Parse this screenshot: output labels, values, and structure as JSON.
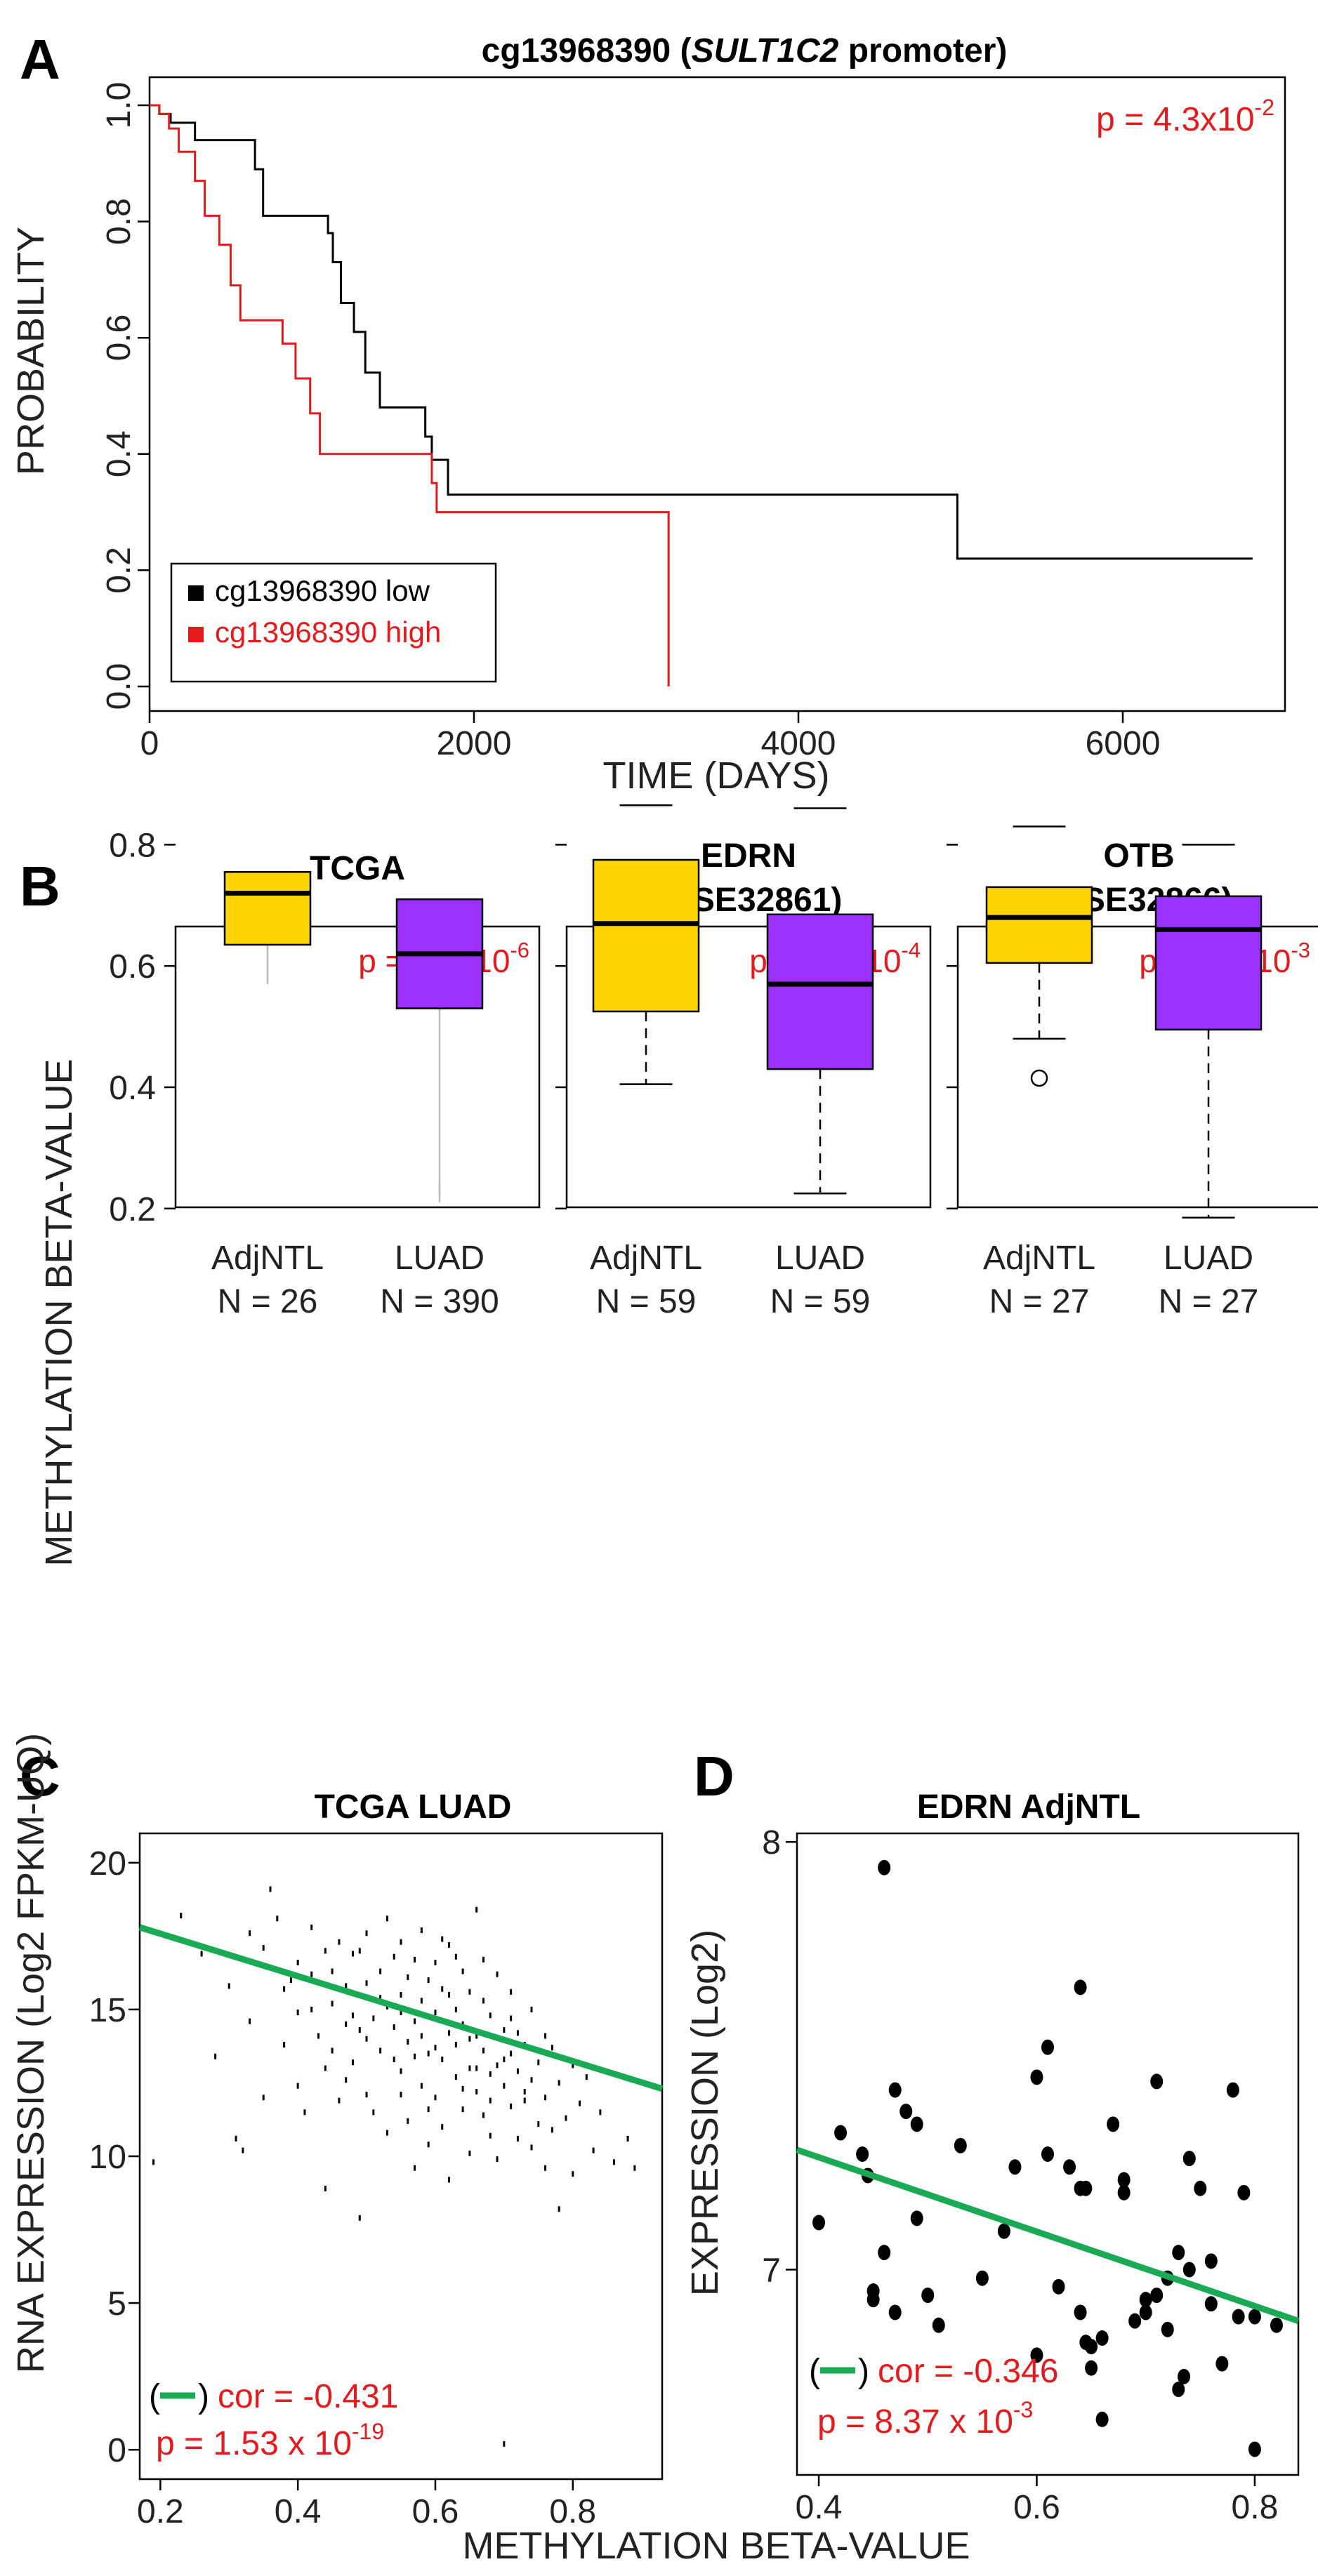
{
  "colors": {
    "red": "#e41a1c",
    "black": "#000000",
    "gold": "#ffd400",
    "purple": "#9b30ff",
    "green": "#1aaa55",
    "grey": "#bbbbbb"
  },
  "panels": {
    "A": {
      "letter": "A"
    },
    "B": {
      "letter": "B"
    },
    "C": {
      "letter": "C"
    },
    "D": {
      "letter": "D"
    }
  },
  "chart_data": [
    {
      "id": "A",
      "type": "line",
      "title_prefix": "cg13968390 (",
      "title_gene": "SULT1C2",
      "title_suffix": " promoter)",
      "xlabel": "TIME (DAYS)",
      "ylabel": "PROBABILITY",
      "xlim": [
        0,
        7000
      ],
      "ylim": [
        0,
        1.0
      ],
      "xticks": [
        0,
        2000,
        4000,
        6000
      ],
      "yticks": [
        "0.0",
        "0.2",
        "0.4",
        "0.6",
        "0.8",
        "1.0"
      ],
      "pvalue": {
        "base": "p = 4.3x10",
        "exp": "-2"
      },
      "legend_position": "bottom-left",
      "series": [
        {
          "name": "cg13968390 low",
          "color": "#000000",
          "steps": [
            [
              0,
              1.0
            ],
            [
              60,
              0.985
            ],
            [
              130,
              0.97
            ],
            [
              280,
              0.94
            ],
            [
              650,
              0.89
            ],
            [
              700,
              0.81
            ],
            [
              1100,
              0.78
            ],
            [
              1130,
              0.73
            ],
            [
              1180,
              0.66
            ],
            [
              1260,
              0.61
            ],
            [
              1330,
              0.54
            ],
            [
              1420,
              0.48
            ],
            [
              1700,
              0.43
            ],
            [
              1740,
              0.39
            ],
            [
              1840,
              0.33
            ],
            [
              4980,
              0.33
            ],
            [
              4980,
              0.22
            ],
            [
              6800,
              0.22
            ]
          ]
        },
        {
          "name": "cg13968390 high",
          "color": "#e41a1c",
          "steps": [
            [
              0,
              1.0
            ],
            [
              60,
              0.985
            ],
            [
              120,
              0.96
            ],
            [
              180,
              0.92
            ],
            [
              280,
              0.87
            ],
            [
              340,
              0.81
            ],
            [
              430,
              0.76
            ],
            [
              500,
              0.69
            ],
            [
              560,
              0.63
            ],
            [
              820,
              0.59
            ],
            [
              900,
              0.53
            ],
            [
              990,
              0.47
            ],
            [
              1050,
              0.4
            ],
            [
              1740,
              0.35
            ],
            [
              1770,
              0.3
            ],
            [
              3200,
              0.3
            ],
            [
              3200,
              0.0
            ]
          ]
        }
      ]
    },
    {
      "id": "B",
      "type": "box",
      "ylabel": "METHYLATION BETA-VALUE",
      "ylim": [
        0.15,
        0.9
      ],
      "yticks": [
        "0.2",
        "0.4",
        "0.6",
        "0.8"
      ],
      "groups": [
        {
          "title_line1": "TCGA",
          "title_line2": "",
          "pvalue": {
            "base": "p = 2.6x10",
            "exp": "-6"
          },
          "boxes": [
            {
              "label": "AdjNTL",
              "n": "N = 26",
              "min": 0.57,
              "q1": 0.635,
              "median": 0.72,
              "q3": 0.755,
              "max": 0.785,
              "outliers": []
            },
            {
              "label": "LUAD",
              "n": "N = 390",
              "min": 0.21,
              "q1": 0.53,
              "median": 0.62,
              "q3": 0.71,
              "max": 0.92,
              "outliers": [
                0.235,
                0.225
              ]
            }
          ]
        },
        {
          "title_line1": "EDRN",
          "title_line2": "(GSE32861)",
          "pvalue": {
            "base": "p = 5.2x10",
            "exp": "-4"
          },
          "boxes": [
            {
              "label": "AdjNTL",
              "n": "N = 59",
              "min": 0.405,
              "q1": 0.525,
              "median": 0.67,
              "q3": 0.775,
              "max": 0.865,
              "outliers": []
            },
            {
              "label": "LUAD",
              "n": "N = 59",
              "min": 0.225,
              "q1": 0.43,
              "median": 0.57,
              "q3": 0.685,
              "max": 0.86,
              "outliers": []
            }
          ]
        },
        {
          "title_line1": "OTB",
          "title_line2": "(GSE32866)",
          "pvalue": {
            "base": "p = 1.9x10",
            "exp": "-3"
          },
          "boxes": [
            {
              "label": "AdjNTL",
              "n": "N = 27",
              "min": 0.48,
              "q1": 0.605,
              "median": 0.68,
              "q3": 0.73,
              "max": 0.83,
              "outliers": [
                0.415
              ]
            },
            {
              "label": "LUAD",
              "n": "N = 27",
              "min": 0.185,
              "q1": 0.495,
              "median": 0.66,
              "q3": 0.715,
              "max": 0.8,
              "outliers": []
            }
          ]
        }
      ]
    },
    {
      "id": "C",
      "type": "scatter",
      "title": "TCGA LUAD",
      "xlabel": "METHYLATION BETA-VALUE",
      "ylabel": "RNA EXPRESSION (Log2 FPKM-UQ)",
      "xlim": [
        0.17,
        0.93
      ],
      "ylim": [
        -1,
        21
      ],
      "xticks": [
        "0.2",
        "0.4",
        "0.6",
        "0.8"
      ],
      "yticks": [
        "0",
        "5",
        "10",
        "15",
        "20"
      ],
      "fit": {
        "x": [
          0.17,
          0.93
        ],
        "y": [
          17.8,
          12.3
        ]
      },
      "cor": "cor = -0.431",
      "pvalue": {
        "base": "p = 1.53 x 10",
        "exp": "-19"
      },
      "points": [
        [
          0.19,
          9.8
        ],
        [
          0.23,
          18.2
        ],
        [
          0.26,
          16.9
        ],
        [
          0.28,
          13.4
        ],
        [
          0.3,
          15.8
        ],
        [
          0.31,
          10.6
        ],
        [
          0.32,
          10.2
        ],
        [
          0.33,
          14.6
        ],
        [
          0.33,
          17.6
        ],
        [
          0.35,
          17.1
        ],
        [
          0.36,
          19.1
        ],
        [
          0.37,
          18.1
        ],
        [
          0.38,
          15.7
        ],
        [
          0.38,
          13.8
        ],
        [
          0.4,
          16.6
        ],
        [
          0.4,
          14.9
        ],
        [
          0.4,
          12.4
        ],
        [
          0.41,
          11.5
        ],
        [
          0.42,
          17.8
        ],
        [
          0.42,
          16.2
        ],
        [
          0.43,
          14.1
        ],
        [
          0.44,
          13.0
        ],
        [
          0.44,
          8.9
        ],
        [
          0.45,
          16.3
        ],
        [
          0.45,
          15.2
        ],
        [
          0.46,
          17.3
        ],
        [
          0.46,
          11.9
        ],
        [
          0.47,
          14.5
        ],
        [
          0.47,
          15.8
        ],
        [
          0.48,
          13.2
        ],
        [
          0.48,
          16.9
        ],
        [
          0.49,
          7.9
        ],
        [
          0.49,
          14.3
        ],
        [
          0.5,
          15.9
        ],
        [
          0.5,
          12.1
        ],
        [
          0.5,
          17.6
        ],
        [
          0.51,
          14.7
        ],
        [
          0.51,
          11.5
        ],
        [
          0.52,
          16.3
        ],
        [
          0.52,
          13.6
        ],
        [
          0.53,
          15.1
        ],
        [
          0.53,
          18.1
        ],
        [
          0.53,
          10.8
        ],
        [
          0.54,
          14.4
        ],
        [
          0.54,
          16.8
        ],
        [
          0.55,
          12.9
        ],
        [
          0.55,
          15.5
        ],
        [
          0.55,
          17.3
        ],
        [
          0.56,
          13.9
        ],
        [
          0.56,
          11.2
        ],
        [
          0.56,
          16.1
        ],
        [
          0.57,
          14.6
        ],
        [
          0.57,
          9.6
        ],
        [
          0.58,
          15.3
        ],
        [
          0.58,
          12.4
        ],
        [
          0.58,
          17.7
        ],
        [
          0.59,
          13.5
        ],
        [
          0.59,
          16.0
        ],
        [
          0.59,
          10.4
        ],
        [
          0.6,
          14.9
        ],
        [
          0.6,
          12.0
        ],
        [
          0.6,
          16.6
        ],
        [
          0.61,
          13.3
        ],
        [
          0.61,
          15.7
        ],
        [
          0.61,
          11.0
        ],
        [
          0.62,
          14.2
        ],
        [
          0.62,
          17.2
        ],
        [
          0.62,
          9.2
        ],
        [
          0.63,
          12.7
        ],
        [
          0.63,
          15.0
        ],
        [
          0.63,
          13.8
        ],
        [
          0.64,
          16.3
        ],
        [
          0.64,
          11.6
        ],
        [
          0.64,
          14.5
        ],
        [
          0.65,
          10.1
        ],
        [
          0.65,
          13.0
        ],
        [
          0.65,
          15.6
        ],
        [
          0.66,
          12.2
        ],
        [
          0.66,
          14.1
        ],
        [
          0.66,
          18.4
        ],
        [
          0.67,
          11.4
        ],
        [
          0.67,
          13.6
        ],
        [
          0.67,
          15.3
        ],
        [
          0.68,
          10.7
        ],
        [
          0.68,
          12.8
        ],
        [
          0.68,
          14.8
        ],
        [
          0.69,
          13.1
        ],
        [
          0.69,
          9.9
        ],
        [
          0.69,
          16.2
        ],
        [
          0.7,
          12.4
        ],
        [
          0.7,
          14.3
        ],
        [
          0.7,
          0.2
        ],
        [
          0.71,
          11.7
        ],
        [
          0.71,
          13.5
        ],
        [
          0.71,
          15.6
        ],
        [
          0.72,
          10.6
        ],
        [
          0.72,
          12.9
        ],
        [
          0.72,
          14.2
        ],
        [
          0.73,
          11.9
        ],
        [
          0.73,
          13.8
        ],
        [
          0.74,
          10.3
        ],
        [
          0.74,
          12.6
        ],
        [
          0.74,
          15.0
        ],
        [
          0.75,
          11.1
        ],
        [
          0.75,
          13.2
        ],
        [
          0.76,
          9.6
        ],
        [
          0.76,
          12.0
        ],
        [
          0.77,
          13.7
        ],
        [
          0.77,
          10.9
        ],
        [
          0.78,
          8.2
        ],
        [
          0.78,
          12.5
        ],
        [
          0.79,
          11.3
        ],
        [
          0.8,
          13.1
        ],
        [
          0.8,
          9.4
        ],
        [
          0.81,
          11.8
        ],
        [
          0.82,
          12.7
        ],
        [
          0.83,
          10.2
        ],
        [
          0.84,
          11.5
        ],
        [
          0.86,
          9.8
        ],
        [
          0.88,
          10.6
        ],
        [
          0.89,
          9.6
        ],
        [
          0.35,
          12.0
        ],
        [
          0.45,
          13.6
        ],
        [
          0.5,
          14.0
        ],
        [
          0.55,
          14.9
        ],
        [
          0.6,
          13.7
        ],
        [
          0.65,
          14.0
        ],
        [
          0.7,
          13.3
        ],
        [
          0.52,
          15.4
        ],
        [
          0.57,
          16.7
        ],
        [
          0.62,
          15.5
        ],
        [
          0.47,
          12.6
        ],
        [
          0.58,
          14.1
        ],
        [
          0.66,
          13.0
        ],
        [
          0.73,
          12.2
        ],
        [
          0.42,
          15.0
        ],
        [
          0.39,
          16.0
        ],
        [
          0.55,
          12.1
        ],
        [
          0.68,
          11.9
        ],
        [
          0.76,
          14.1
        ],
        [
          0.49,
          17.0
        ],
        [
          0.61,
          17.4
        ],
        [
          0.54,
          13.3
        ],
        [
          0.64,
          12.3
        ],
        [
          0.71,
          14.7
        ],
        [
          0.59,
          11.6
        ],
        [
          0.63,
          16.8
        ],
        [
          0.67,
          16.7
        ],
        [
          0.48,
          14.8
        ],
        [
          0.44,
          17.0
        ],
        [
          0.57,
          13.4
        ]
      ]
    },
    {
      "id": "D",
      "type": "scatter",
      "title": "EDRN AdjNTL",
      "xlabel": "",
      "ylabel": "EXPRESSION (Log2)",
      "xlim": [
        0.38,
        0.84
      ],
      "ylim": [
        6.52,
        8.02
      ],
      "xticks": [
        "0.4",
        "0.6",
        "0.8"
      ],
      "yticks": [
        "7",
        "8"
      ],
      "fit": {
        "x": [
          0.38,
          0.84
        ],
        "y": [
          7.28,
          6.88
        ]
      },
      "cor": "cor = -0.346",
      "pvalue": {
        "base": "p = 8.37 x 10",
        "exp": "-3"
      },
      "points": [
        [
          0.4,
          7.11
        ],
        [
          0.42,
          7.32
        ],
        [
          0.44,
          7.27
        ],
        [
          0.445,
          7.22
        ],
        [
          0.45,
          6.93
        ],
        [
          0.45,
          6.95
        ],
        [
          0.46,
          7.94
        ],
        [
          0.46,
          7.04
        ],
        [
          0.47,
          7.42
        ],
        [
          0.47,
          6.9
        ],
        [
          0.48,
          7.37
        ],
        [
          0.49,
          7.12
        ],
        [
          0.49,
          7.34
        ],
        [
          0.5,
          6.94
        ],
        [
          0.51,
          6.87
        ],
        [
          0.53,
          7.29
        ],
        [
          0.55,
          6.98
        ],
        [
          0.57,
          7.09
        ],
        [
          0.58,
          7.24
        ],
        [
          0.6,
          7.45
        ],
        [
          0.6,
          6.8
        ],
        [
          0.61,
          7.27
        ],
        [
          0.61,
          7.52
        ],
        [
          0.62,
          6.96
        ],
        [
          0.63,
          7.24
        ],
        [
          0.64,
          7.66
        ],
        [
          0.64,
          6.9
        ],
        [
          0.64,
          7.19
        ],
        [
          0.645,
          7.19
        ],
        [
          0.645,
          6.83
        ],
        [
          0.65,
          6.77
        ],
        [
          0.65,
          6.82
        ],
        [
          0.66,
          6.65
        ],
        [
          0.66,
          6.84
        ],
        [
          0.67,
          7.34
        ],
        [
          0.68,
          7.21
        ],
        [
          0.68,
          7.18
        ],
        [
          0.69,
          6.88
        ],
        [
          0.7,
          6.93
        ],
        [
          0.7,
          6.9
        ],
        [
          0.71,
          7.44
        ],
        [
          0.71,
          6.94
        ],
        [
          0.72,
          6.98
        ],
        [
          0.72,
          6.86
        ],
        [
          0.73,
          6.72
        ],
        [
          0.73,
          7.04
        ],
        [
          0.735,
          6.75
        ],
        [
          0.74,
          7.0
        ],
        [
          0.74,
          7.26
        ],
        [
          0.75,
          7.19
        ],
        [
          0.76,
          6.92
        ],
        [
          0.76,
          7.02
        ],
        [
          0.77,
          6.78
        ],
        [
          0.78,
          7.42
        ],
        [
          0.785,
          6.89
        ],
        [
          0.79,
          7.18
        ],
        [
          0.8,
          6.89
        ],
        [
          0.82,
          6.87
        ],
        [
          0.8,
          6.58
        ]
      ]
    }
  ]
}
